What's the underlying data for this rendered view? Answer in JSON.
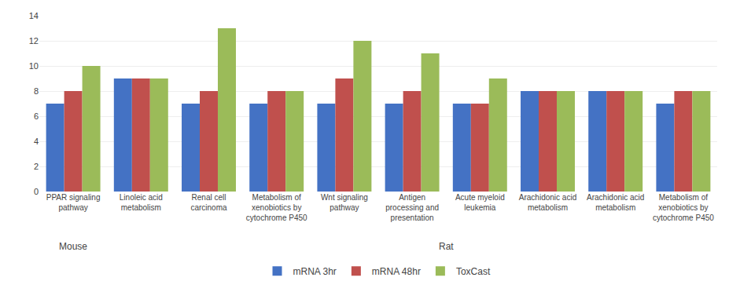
{
  "chart_data": {
    "type": "bar",
    "categories": [
      "PPAR signaling\npathway",
      "Linoleic acid\nmetabolism",
      "Renal cell\ncarcinoma",
      "Metabolism of\nxenobiotics by\ncytochrome P450",
      "Wnt signaling\npathway",
      "Antigen\nprocessing and\npresentation",
      "Acute myeloid\nleukemia",
      "Arachidonic acid\nmetabolism",
      "Arachidonic acid\nmetabolism",
      "Metabolism of\nxenobiotics by\ncytochrome P450"
    ],
    "series": [
      {
        "name": "mRNA 3hr",
        "color": "#4472C4",
        "values": [
          7,
          9,
          7,
          7,
          7,
          7,
          7,
          8,
          8,
          7
        ]
      },
      {
        "name": "mRNA 48hr",
        "color": "#C0504D",
        "values": [
          8,
          9,
          8,
          8,
          9,
          8,
          7,
          8,
          8,
          8
        ]
      },
      {
        "name": "ToxCast",
        "color": "#9BBB59",
        "values": [
          10,
          9,
          13,
          8,
          12,
          11,
          9,
          8,
          8,
          8
        ]
      }
    ],
    "ylim": [
      0,
      14
    ],
    "yticks": [
      0,
      2,
      4,
      6,
      8,
      10,
      12,
      14
    ],
    "grid": true,
    "legend": "bottom",
    "annotations": [
      {
        "text": "Mouse",
        "x": 0
      },
      {
        "text": "Rat",
        "x": 5.5
      }
    ]
  }
}
